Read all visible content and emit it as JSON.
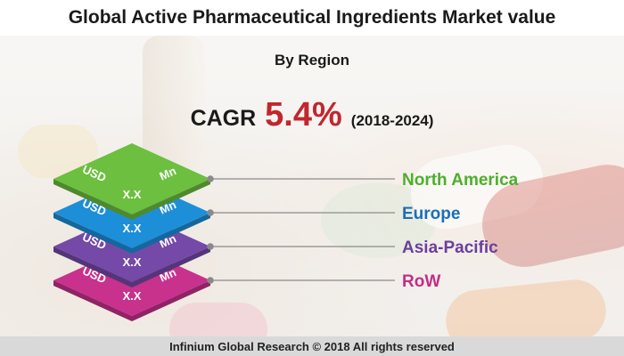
{
  "header": {
    "title": "Global Active Pharmaceutical Ingredients Market value",
    "subtitle": "By Region"
  },
  "cagr": {
    "label": "CAGR",
    "value": "5.4%",
    "period": "(2018-2024)",
    "value_color": "#c0272d"
  },
  "chart_data": {
    "type": "table",
    "categories": [
      "North America",
      "Europe",
      "Asia-Pacific",
      "RoW"
    ],
    "values": [
      {
        "prefix": "USD",
        "value": "X.X",
        "unit": "Mn"
      },
      {
        "prefix": "USD",
        "value": "X.X",
        "unit": "Mn"
      },
      {
        "prefix": "USD",
        "value": "X.X",
        "unit": "Mn"
      },
      {
        "prefix": "USD",
        "value": "X.X",
        "unit": "Mn"
      }
    ],
    "colors": [
      "#6cbf3f",
      "#1d8fd8",
      "#7449a8",
      "#c8318c"
    ],
    "label_colors": [
      "#4caf2c",
      "#1a6fb8",
      "#6a3f9e",
      "#c02f86"
    ]
  },
  "footer": {
    "text": "Infinium Global Research © 2018 All rights reserved"
  }
}
